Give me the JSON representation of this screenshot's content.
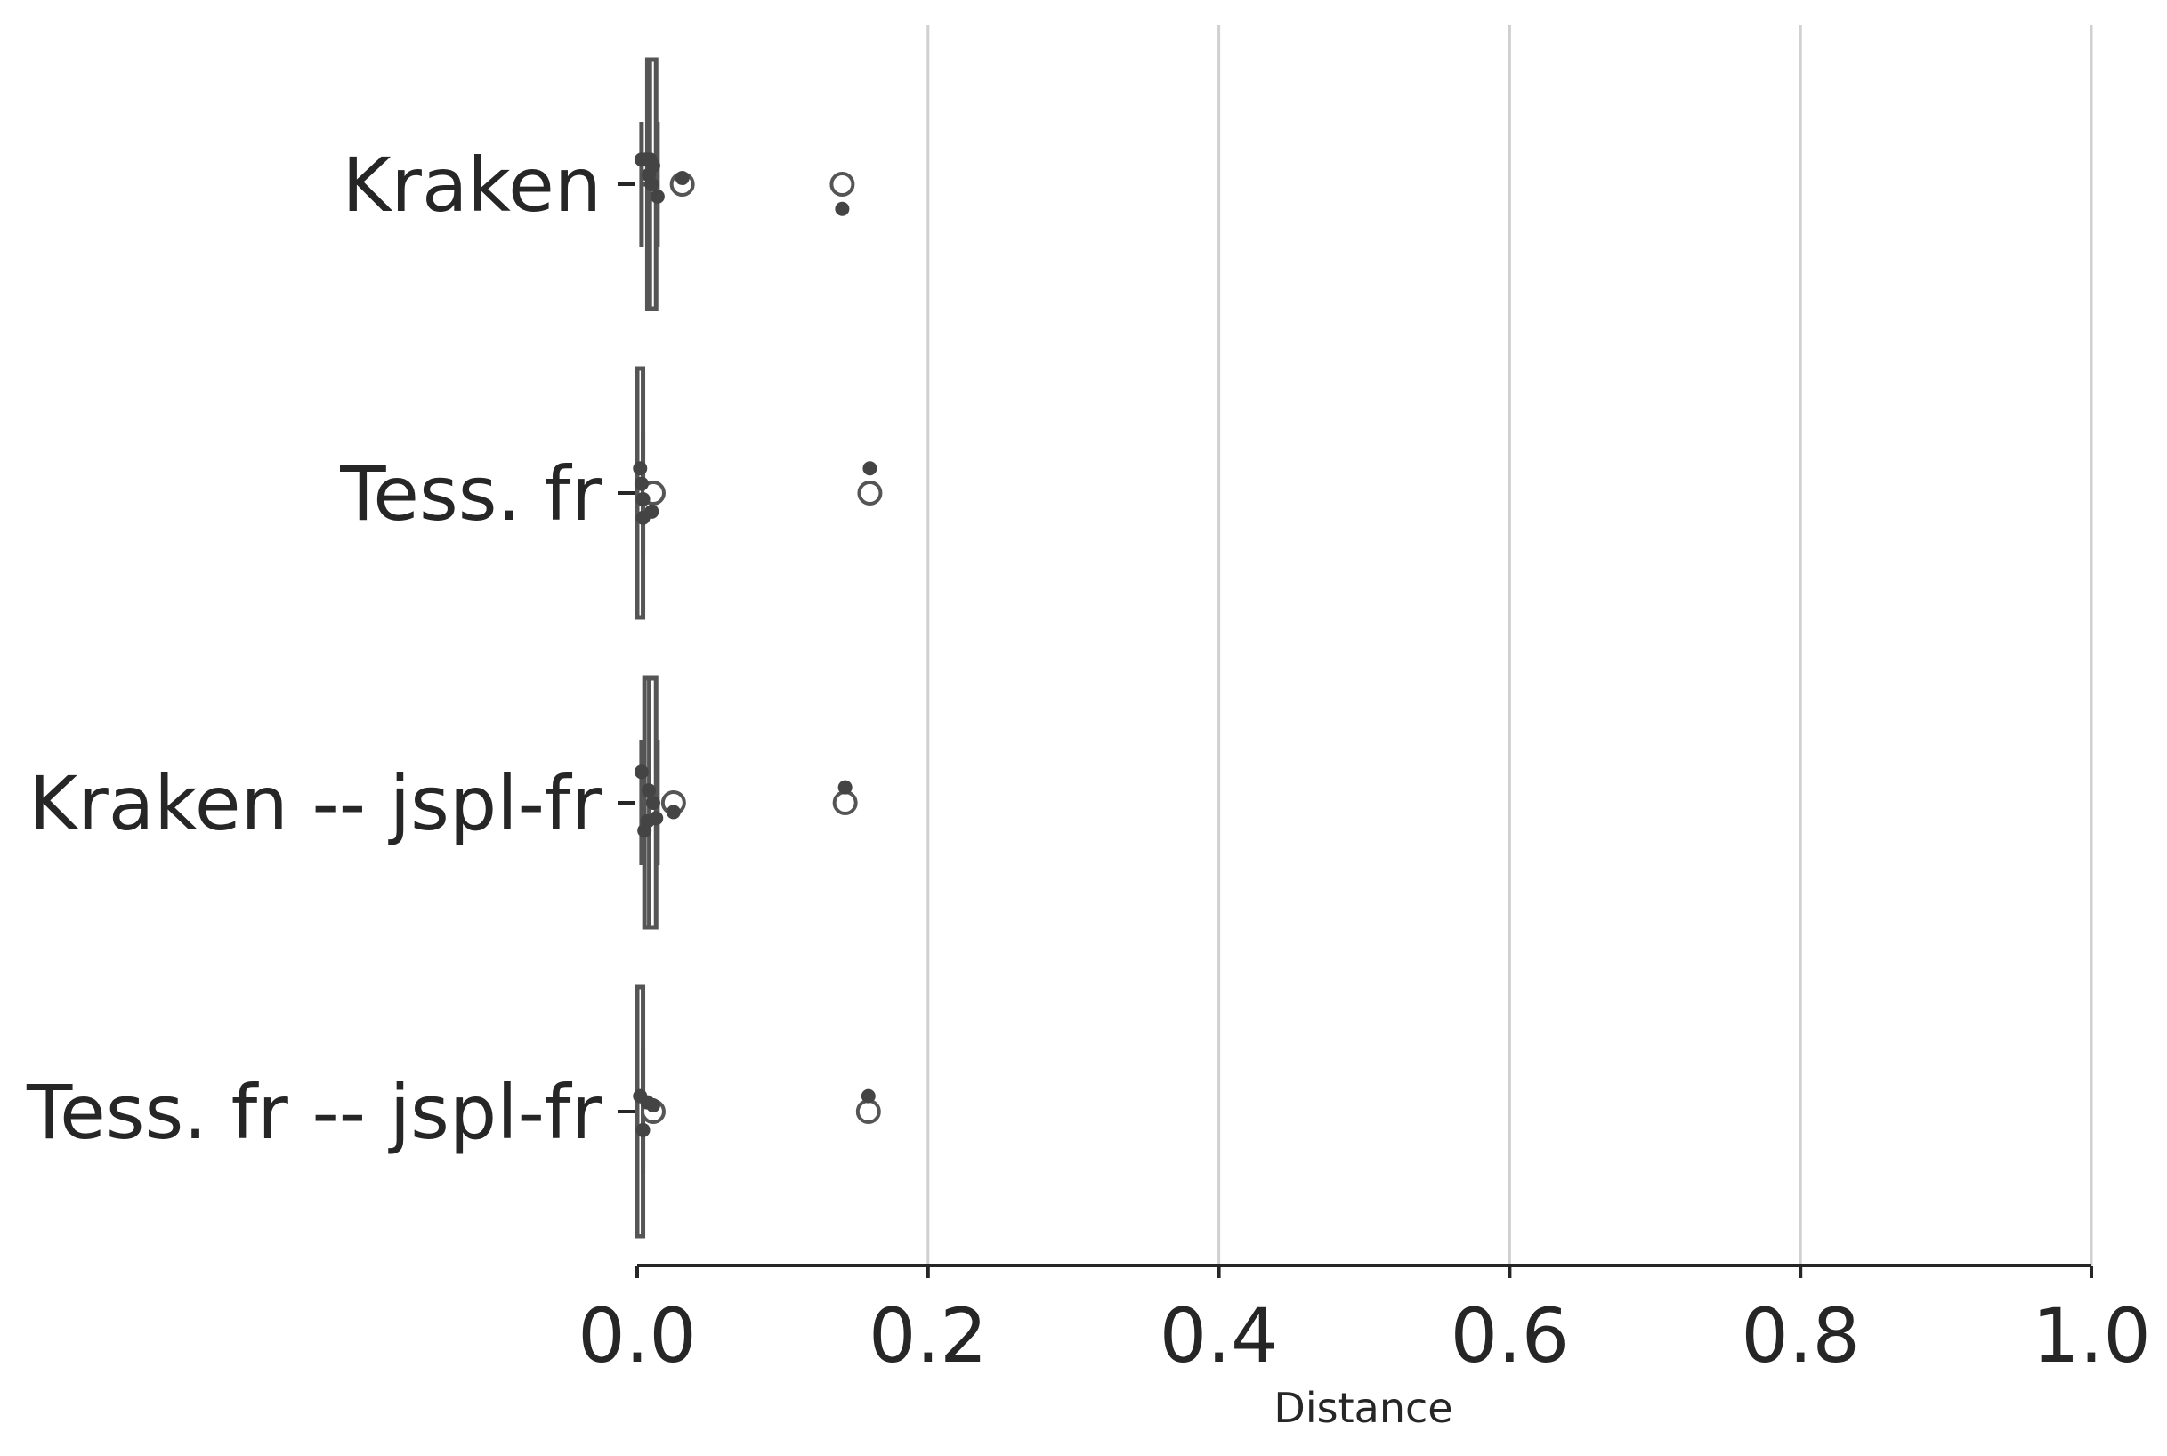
{
  "chart_data": {
    "type": "boxplot",
    "orientation": "horizontal",
    "title": "",
    "xlabel": "Distance",
    "ylabel": "",
    "xlim": [
      0.0,
      1.0
    ],
    "xticks": [
      "0.0",
      "0.2",
      "0.4",
      "0.6",
      "0.8",
      "1.0"
    ],
    "xtick_values": [
      0.0,
      0.2,
      0.4,
      0.6,
      0.8,
      1.0
    ],
    "grid": "vertical",
    "categories": [
      "Kraken",
      "Tess. fr",
      "Kraken -- jspl-fr",
      "Tess. fr -- jspl-fr"
    ],
    "boxes": [
      {
        "min": 0.003,
        "q1": 0.007,
        "median": 0.009,
        "q3": 0.013,
        "max": 0.014,
        "outliers": [
          0.031,
          0.141
        ]
      },
      {
        "min": 0.0,
        "q1": 0.0,
        "median": 0.0,
        "q3": 0.004,
        "max": 0.004,
        "outliers": [
          0.011,
          0.16
        ]
      },
      {
        "min": 0.003,
        "q1": 0.005,
        "median": 0.008,
        "q3": 0.013,
        "max": 0.014,
        "outliers": [
          0.025,
          0.143
        ]
      },
      {
        "min": 0.0,
        "q1": 0.0,
        "median": 0.0,
        "q3": 0.004,
        "max": 0.004,
        "outliers": [
          0.011,
          0.159
        ]
      }
    ],
    "points": [
      [
        {
          "x": 0.003,
          "dy": -0.08
        },
        {
          "x": 0.006,
          "dy": -0.08
        },
        {
          "x": 0.009,
          "dy": -0.08
        },
        {
          "x": 0.011,
          "dy": -0.06
        },
        {
          "x": 0.008,
          "dy": -0.03
        },
        {
          "x": 0.01,
          "dy": 0.0
        },
        {
          "x": 0.014,
          "dy": 0.04
        },
        {
          "x": 0.031,
          "dy": -0.02
        },
        {
          "x": 0.141,
          "dy": 0.08
        }
      ],
      [
        {
          "x": 0.002,
          "dy": -0.08
        },
        {
          "x": 0.003,
          "dy": -0.03
        },
        {
          "x": 0.004,
          "dy": 0.02
        },
        {
          "x": 0.01,
          "dy": 0.06
        },
        {
          "x": 0.004,
          "dy": 0.08
        },
        {
          "x": 0.16,
          "dy": -0.08
        }
      ],
      [
        {
          "x": 0.003,
          "dy": -0.1
        },
        {
          "x": 0.008,
          "dy": -0.04
        },
        {
          "x": 0.011,
          "dy": 0.0
        },
        {
          "x": 0.025,
          "dy": 0.03
        },
        {
          "x": 0.013,
          "dy": 0.05
        },
        {
          "x": 0.007,
          "dy": 0.06
        },
        {
          "x": 0.005,
          "dy": 0.09
        },
        {
          "x": 0.143,
          "dy": -0.05
        }
      ],
      [
        {
          "x": 0.002,
          "dy": -0.05
        },
        {
          "x": 0.007,
          "dy": -0.03
        },
        {
          "x": 0.011,
          "dy": -0.02
        },
        {
          "x": 0.004,
          "dy": 0.06
        },
        {
          "x": 0.159,
          "dy": -0.05
        }
      ]
    ]
  }
}
